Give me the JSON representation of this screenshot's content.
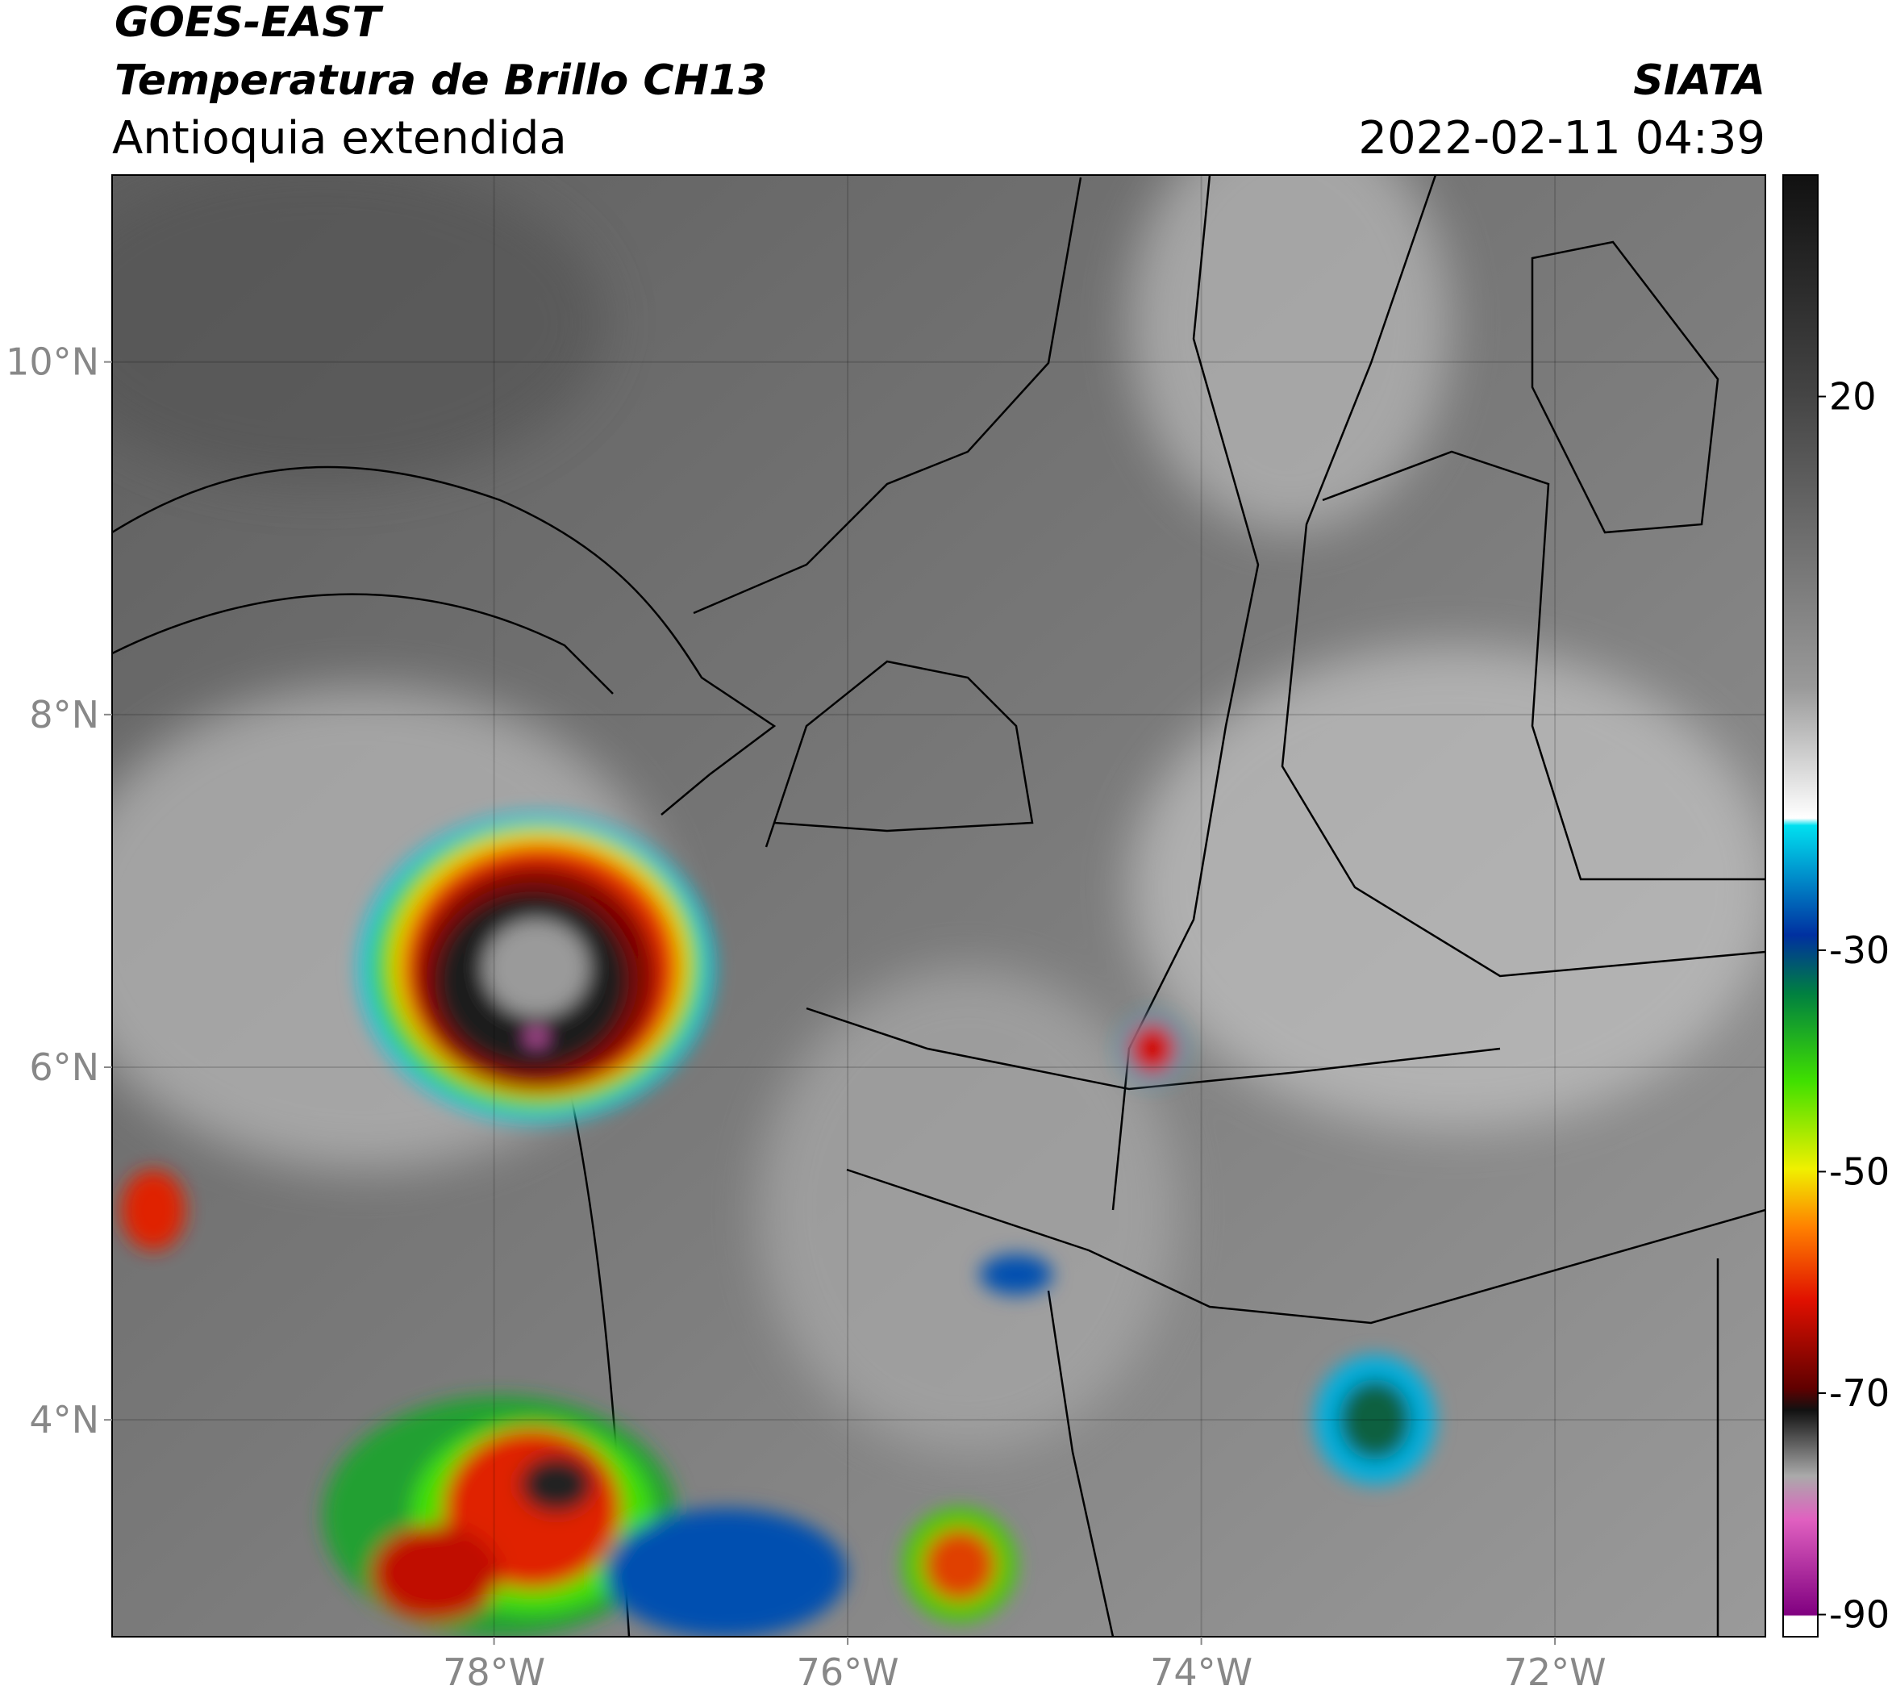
{
  "header": {
    "title": "GOES-EAST",
    "subtitle": "Temperatura de Brillo CH13",
    "region": "Antioquia extendida",
    "source": "SIATA",
    "datetime": "2022-02-11 04:39"
  },
  "map": {
    "xlim": [
      -80.16,
      -70.81
    ],
    "ylim": [
      2.77,
      11.06
    ],
    "xticks": [
      {
        "value": -78,
        "label": "78°W"
      },
      {
        "value": -76,
        "label": "76°W"
      },
      {
        "value": -74,
        "label": "74°W"
      },
      {
        "value": -72,
        "label": "72°W"
      }
    ],
    "yticks": [
      {
        "value": 4,
        "label": "4°N"
      },
      {
        "value": 6,
        "label": "6°N"
      },
      {
        "value": 8,
        "label": "8°N"
      },
      {
        "value": 10,
        "label": "10°N"
      }
    ],
    "grid": true
  },
  "colorbar": {
    "lim": [
      -92,
      40
    ],
    "ticks": [
      20,
      -30,
      -50,
      -70,
      -90
    ]
  }
}
